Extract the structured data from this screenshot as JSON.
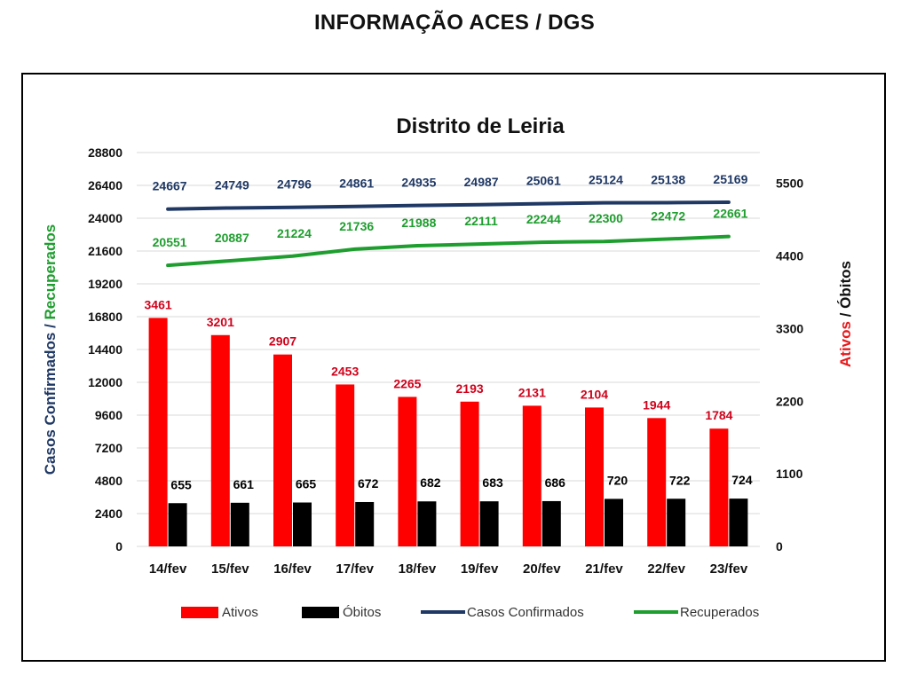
{
  "page": {
    "title": "INFORMAÇÃO ACES / DGS"
  },
  "chart_data": {
    "type": "bar",
    "title": "Distrito de Leiria",
    "categories": [
      "14/fev",
      "15/fev",
      "16/fev",
      "17/fev",
      "18/fev",
      "19/fev",
      "20/fev",
      "21/fev",
      "22/fev",
      "23/fev"
    ],
    "left_axis": {
      "label_parts": [
        {
          "text": "Casos Confirmados",
          "color": "#1f3864"
        },
        {
          "text": " / ",
          "color": "#1f3864"
        },
        {
          "text": "Recuperados",
          "color": "#1e9e2e"
        }
      ],
      "ticks": [
        0,
        2400,
        4800,
        7200,
        9600,
        12000,
        14400,
        16800,
        19200,
        21600,
        24000,
        26400,
        28800
      ],
      "ylim": [
        0,
        28800
      ]
    },
    "right_axis": {
      "label_parts": [
        {
          "text": "Ativos",
          "color": "#e8191c"
        },
        {
          "text": " / Óbitos",
          "color": "#111111"
        }
      ],
      "ticks": [
        0,
        1100,
        2200,
        3300,
        4400,
        5500
      ],
      "ylim": [
        0,
        5966
      ]
    },
    "series": [
      {
        "name": "Ativos",
        "type": "bar",
        "axis": "right",
        "color": "#ff0000",
        "label_color": "#d0021b",
        "values": [
          3461,
          3201,
          2907,
          2453,
          2265,
          2193,
          2131,
          2104,
          1944,
          1784
        ]
      },
      {
        "name": "Óbitos",
        "type": "bar",
        "axis": "right",
        "color": "#000000",
        "label_color": "#000000",
        "values": [
          655,
          661,
          665,
          672,
          682,
          683,
          686,
          720,
          722,
          724
        ]
      },
      {
        "name": "Casos Confirmados",
        "type": "line",
        "axis": "left",
        "color": "#1f3864",
        "label_color": "#1f3864",
        "values": [
          24667,
          24749,
          24796,
          24861,
          24935,
          24987,
          25061,
          25124,
          25138,
          25169
        ]
      },
      {
        "name": "Recuperados",
        "type": "line",
        "axis": "left",
        "color": "#1e9e2e",
        "label_color": "#1e9e2e",
        "values": [
          20551,
          20887,
          21224,
          21736,
          21988,
          22111,
          22244,
          22300,
          22472,
          22661
        ]
      }
    ],
    "legend_position": "bottom",
    "grid": true
  }
}
